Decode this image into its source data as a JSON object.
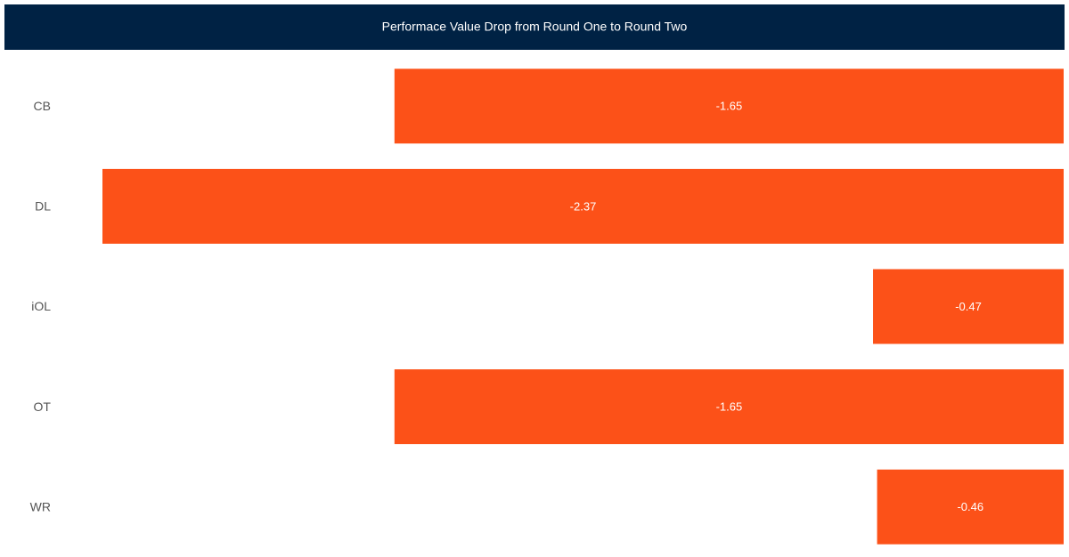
{
  "chart_data": {
    "type": "bar",
    "orientation": "horizontal",
    "title": "Performace Value Drop from Round One to Round Two",
    "categories": [
      "CB",
      "DL",
      "iOL",
      "OT",
      "WR"
    ],
    "values": [
      -1.65,
      -2.37,
      -0.47,
      -1.65,
      -0.46
    ],
    "color": "#fc5118"
  }
}
